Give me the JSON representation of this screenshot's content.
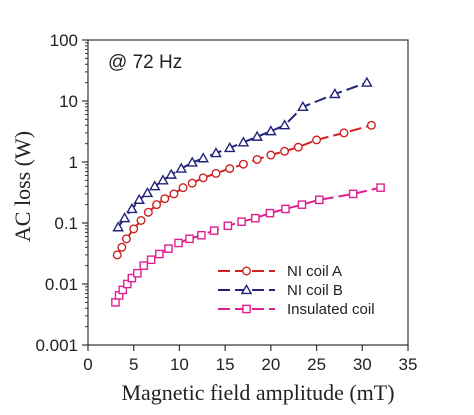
{
  "chart_data": {
    "type": "scatter",
    "title": "",
    "xlabel": "Magnetic field amplitude (mT)",
    "ylabel": "AC loss (W)",
    "annotation": "@ 72 Hz",
    "xlim": [
      0,
      35
    ],
    "ylim": [
      0.001,
      100
    ],
    "yscale": "log",
    "x_ticks": [
      "0",
      "5",
      "10",
      "15",
      "20",
      "25",
      "30",
      "35"
    ],
    "y_ticks": [
      "0.001",
      "0.01",
      "0.1",
      "1",
      "10",
      "100"
    ],
    "grid": false,
    "legend_position": "bottom-right",
    "series": [
      {
        "name": "NI coil A",
        "color": "#cc2222",
        "marker": "circle",
        "x": [
          3.2,
          3.7,
          4.2,
          5.0,
          5.8,
          6.6,
          7.5,
          8.4,
          9.4,
          10.4,
          11.4,
          12.6,
          14.0,
          15.5,
          17.0,
          18.5,
          20.0,
          21.5,
          23.0,
          25.0,
          28.0,
          31.0
        ],
        "y": [
          0.03,
          0.04,
          0.055,
          0.08,
          0.11,
          0.15,
          0.2,
          0.25,
          0.3,
          0.38,
          0.45,
          0.55,
          0.65,
          0.78,
          0.92,
          1.1,
          1.3,
          1.5,
          1.75,
          2.3,
          3.0,
          4.0
        ]
      },
      {
        "name": "NI coil B",
        "color": "#22237a",
        "marker": "triangle",
        "x": [
          3.3,
          4.0,
          4.8,
          5.6,
          6.5,
          7.3,
          8.2,
          9.1,
          10.2,
          11.4,
          12.6,
          14.0,
          15.5,
          17.0,
          18.5,
          20.0,
          21.5,
          23.5,
          27.0,
          30.5
        ],
        "y": [
          0.085,
          0.12,
          0.17,
          0.24,
          0.31,
          0.4,
          0.5,
          0.62,
          0.78,
          0.98,
          1.15,
          1.4,
          1.7,
          2.1,
          2.6,
          3.2,
          4.0,
          8.0,
          13.0,
          20.0
        ]
      },
      {
        "name": "Insulated coil",
        "color": "#e0208e",
        "marker": "square",
        "x": [
          3.0,
          3.4,
          3.8,
          4.3,
          4.8,
          5.4,
          6.1,
          6.9,
          7.8,
          8.8,
          9.9,
          11.1,
          12.4,
          13.8,
          15.3,
          16.8,
          18.3,
          19.9,
          21.6,
          23.4,
          25.3,
          29.0,
          32.0
        ],
        "y": [
          0.005,
          0.0065,
          0.008,
          0.01,
          0.0125,
          0.015,
          0.02,
          0.025,
          0.031,
          0.038,
          0.047,
          0.055,
          0.063,
          0.075,
          0.09,
          0.105,
          0.12,
          0.145,
          0.17,
          0.2,
          0.24,
          0.3,
          0.38
        ]
      }
    ]
  }
}
